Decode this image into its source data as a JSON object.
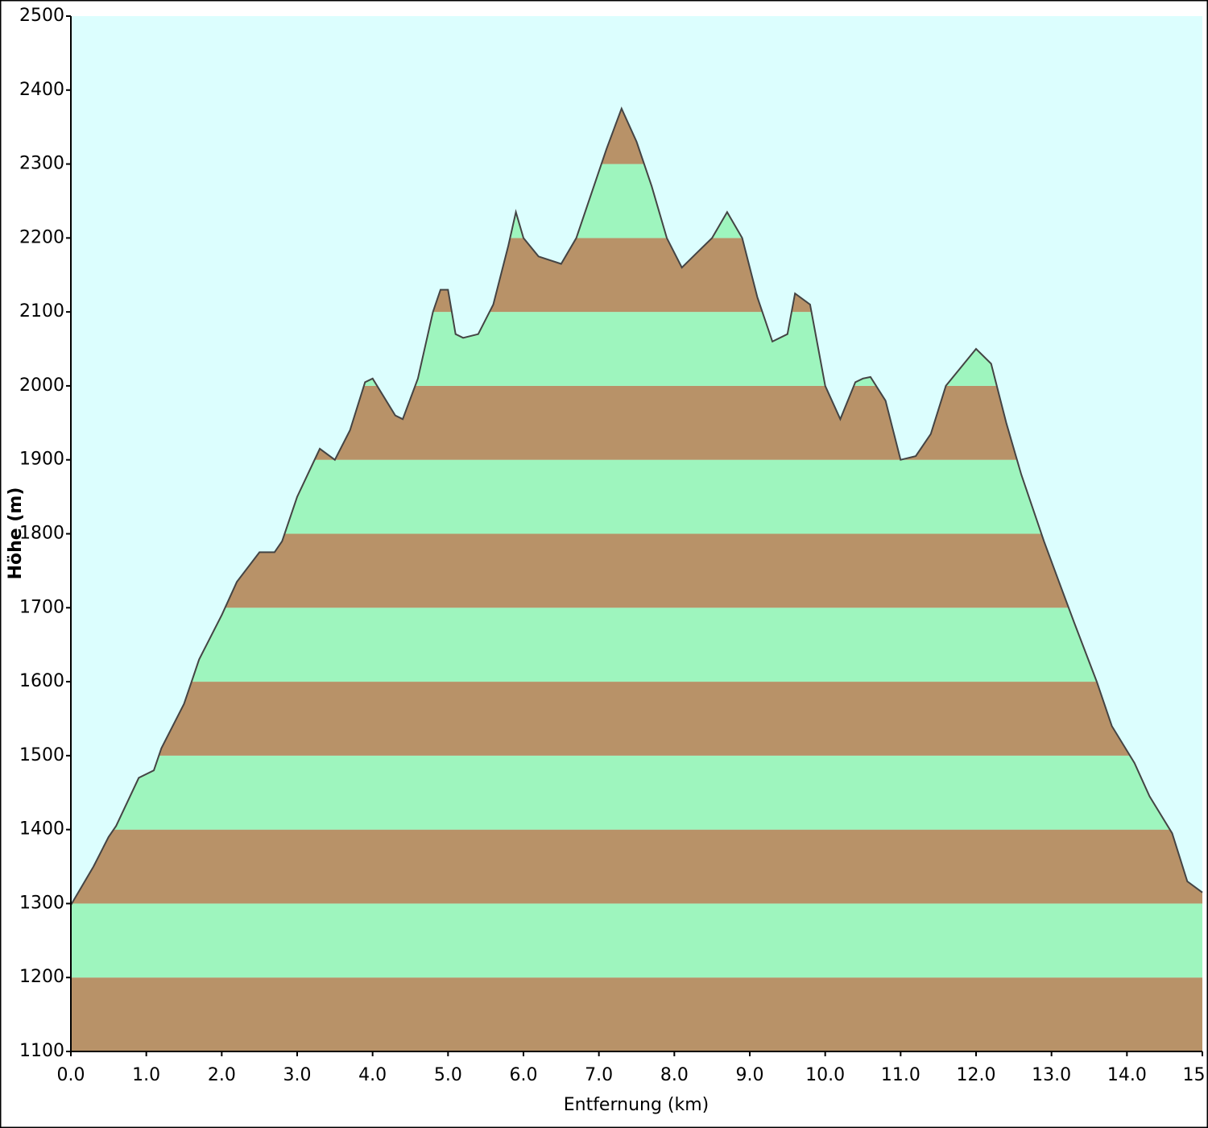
{
  "chart_data": {
    "type": "area",
    "x_label": "Entfernung  (km)",
    "y_label": "Höhe (m)",
    "x": [
      0.0,
      0.3,
      0.5,
      0.6,
      0.9,
      1.1,
      1.2,
      1.5,
      1.6,
      1.7,
      2.0,
      2.2,
      2.5,
      2.7,
      2.8,
      3.0,
      3.3,
      3.5,
      3.7,
      3.9,
      4.0,
      4.3,
      4.4,
      4.6,
      4.8,
      4.9,
      5.0,
      5.1,
      5.2,
      5.4,
      5.6,
      5.8,
      5.9,
      6.0,
      6.2,
      6.5,
      6.7,
      6.9,
      7.1,
      7.3,
      7.5,
      7.7,
      7.9,
      8.1,
      8.3,
      8.5,
      8.7,
      8.9,
      9.1,
      9.3,
      9.5,
      9.6,
      9.8,
      10.0,
      10.2,
      10.4,
      10.5,
      10.6,
      10.8,
      11.0,
      11.2,
      11.4,
      11.6,
      12.0,
      12.2,
      12.4,
      12.6,
      12.9,
      13.1,
      13.3,
      13.6,
      13.8,
      14.1,
      14.3,
      14.6,
      14.8,
      15.0
    ],
    "y": [
      1298,
      1350,
      1390,
      1405,
      1470,
      1480,
      1510,
      1570,
      1600,
      1630,
      1690,
      1735,
      1775,
      1775,
      1790,
      1850,
      1915,
      1900,
      1940,
      2005,
      2010,
      1960,
      1955,
      2010,
      2100,
      2130,
      2130,
      2070,
      2065,
      2070,
      2110,
      2190,
      2235,
      2200,
      2175,
      2165,
      2200,
      2260,
      2320,
      2375,
      2330,
      2270,
      2200,
      2160,
      2180,
      2200,
      2235,
      2200,
      2120,
      2060,
      2070,
      2125,
      2110,
      2000,
      1955,
      2005,
      2010,
      2012,
      1980,
      1900,
      1905,
      1935,
      2000,
      2050,
      2030,
      1950,
      1880,
      1790,
      1735,
      1680,
      1600,
      1540,
      1490,
      1445,
      1395,
      1330,
      1315
    ],
    "xlim": [
      0,
      15
    ],
    "ylim": [
      1100,
      2500
    ],
    "xticks": [
      {
        "value": 0,
        "label": "0.0"
      },
      {
        "value": 1,
        "label": "1.0"
      },
      {
        "value": 2,
        "label": "2.0"
      },
      {
        "value": 3,
        "label": "3.0"
      },
      {
        "value": 4,
        "label": "4.0"
      },
      {
        "value": 5,
        "label": "5.0"
      },
      {
        "value": 6,
        "label": "6.0"
      },
      {
        "value": 7,
        "label": "7.0"
      },
      {
        "value": 8,
        "label": "8.0"
      },
      {
        "value": 9,
        "label": "9.0"
      },
      {
        "value": 10,
        "label": "10.0"
      },
      {
        "value": 11,
        "label": "11.0"
      },
      {
        "value": 12,
        "label": "12.0"
      },
      {
        "value": 13,
        "label": "13.0"
      },
      {
        "value": 14,
        "label": "14.0"
      },
      {
        "value": 15,
        "label": "15.0"
      }
    ],
    "yticks": [
      1100,
      1200,
      1300,
      1400,
      1500,
      1600,
      1700,
      1800,
      1900,
      2000,
      2100,
      2200,
      2300,
      2400,
      2500
    ],
    "band_colors": [
      "#b89268",
      "#9ef5be"
    ],
    "background": "#dcfefe",
    "line_color": "#444444"
  }
}
